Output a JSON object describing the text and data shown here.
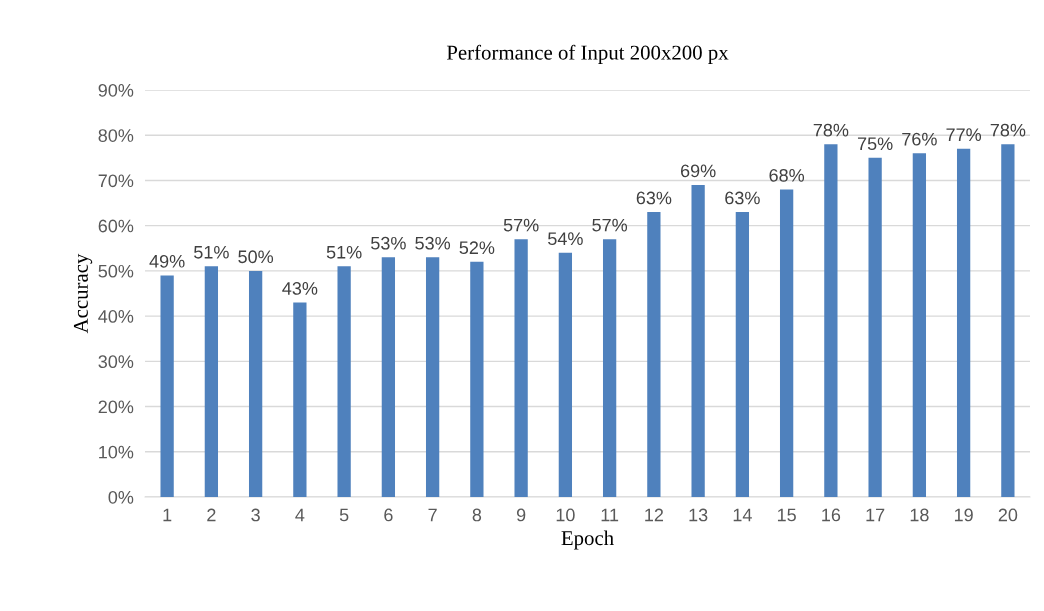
{
  "chart_data": {
    "type": "bar",
    "title": "Performance of Input 200x200 px",
    "xlabel": "Epoch",
    "ylabel": "Accuracy",
    "categories": [
      "1",
      "2",
      "3",
      "4",
      "5",
      "6",
      "7",
      "8",
      "9",
      "10",
      "11",
      "12",
      "13",
      "14",
      "15",
      "16",
      "17",
      "18",
      "19",
      "20"
    ],
    "values": [
      49,
      51,
      50,
      43,
      51,
      53,
      53,
      52,
      57,
      54,
      57,
      63,
      69,
      63,
      68,
      78,
      75,
      76,
      77,
      78
    ],
    "value_labels": [
      "49%",
      "51%",
      "50%",
      "43%",
      "51%",
      "53%",
      "53%",
      "52%",
      "57%",
      "54%",
      "57%",
      "63%",
      "69%",
      "63%",
      "68%",
      "78%",
      "75%",
      "76%",
      "77%",
      "78%"
    ],
    "color": "#4f81bd",
    "ylim": [
      0,
      90
    ],
    "yticks": [
      {
        "value": 0,
        "label": "0%"
      },
      {
        "value": 10,
        "label": "10%"
      },
      {
        "value": 20,
        "label": "20%"
      },
      {
        "value": 30,
        "label": "30%"
      },
      {
        "value": 40,
        "label": "40%"
      },
      {
        "value": 50,
        "label": "50%"
      },
      {
        "value": 60,
        "label": "60%"
      },
      {
        "value": 70,
        "label": "70%"
      },
      {
        "value": 80,
        "label": "80%"
      },
      {
        "value": 90,
        "label": "90%"
      }
    ],
    "grid": "y",
    "legend": false
  }
}
